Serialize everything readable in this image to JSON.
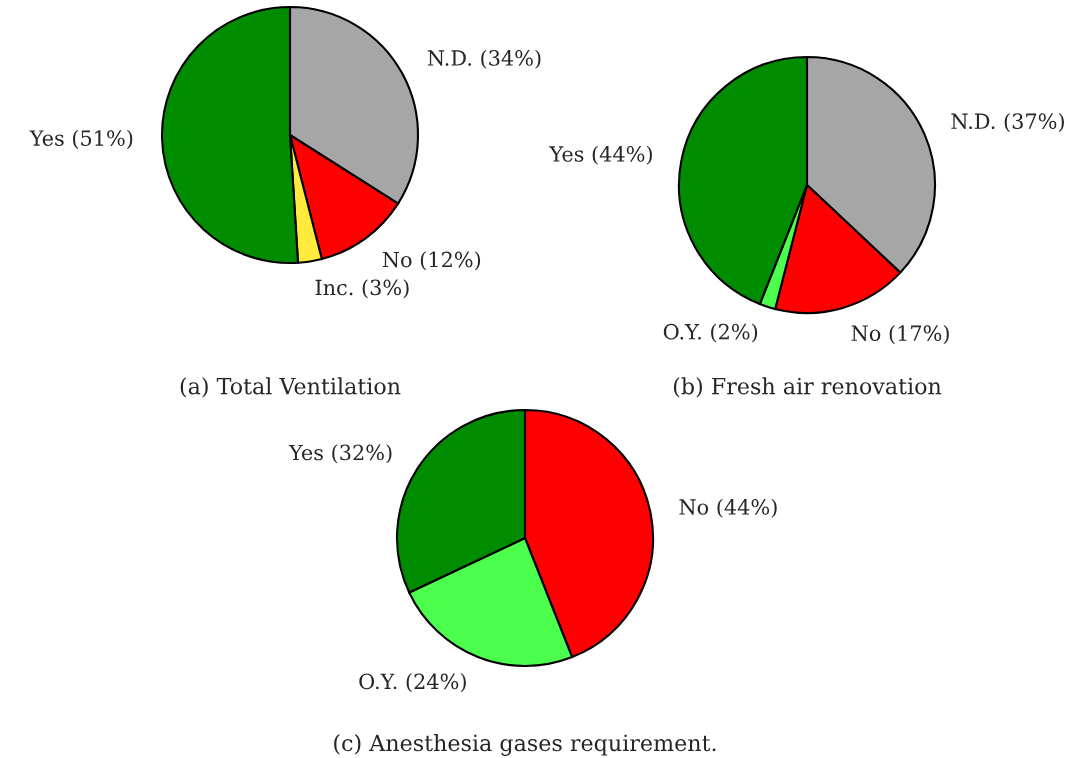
{
  "chart_data": [
    {
      "type": "pie",
      "title": "(a) Total Ventilation",
      "categories": [
        "N.D. (34%)",
        "No (12%)",
        "Inc. (3%)",
        "Yes (51%)"
      ],
      "values": [
        34,
        12,
        3,
        51
      ],
      "colors": [
        "#a6a6a6",
        "#ff0000",
        "#ffeb3b",
        "#008c00"
      ]
    },
    {
      "type": "pie",
      "title": "(b) Fresh air renovation",
      "categories": [
        "N.D. (37%)",
        "No (17%)",
        "O.Y. (2%)",
        "Yes (44%)"
      ],
      "values": [
        37,
        17,
        2,
        44
      ],
      "colors": [
        "#a6a6a6",
        "#ff0000",
        "#4dff4d",
        "#008c00"
      ]
    },
    {
      "type": "pie",
      "title": "(c) Anesthesia gases requirement.",
      "categories": [
        "No (44%)",
        "O.Y. (24%)",
        "Yes (32%)"
      ],
      "values": [
        44,
        24,
        32
      ],
      "colors": [
        "#ff0000",
        "#4dff4d",
        "#008c00"
      ]
    }
  ]
}
